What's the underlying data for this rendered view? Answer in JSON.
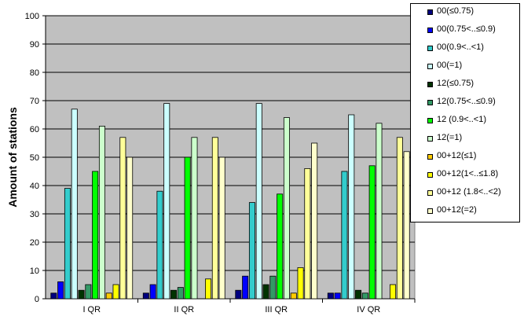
{
  "chart_data": {
    "type": "bar",
    "title": "",
    "xlabel": "",
    "ylabel": "Amount of stations",
    "ylim": [
      0,
      100
    ],
    "yticks": [
      "0",
      "10",
      "20",
      "30",
      "40",
      "50",
      "60",
      "70",
      "80",
      "90",
      "100"
    ],
    "categories": [
      "I QR",
      "II QR",
      "III QR",
      "IV QR"
    ],
    "grid": true,
    "legend_position": "right",
    "plot_background": "#c0c0c0",
    "series": [
      {
        "name": "00(≤0.75)",
        "color": "#000080",
        "values": [
          2,
          2,
          3,
          2
        ]
      },
      {
        "name": "00(0.75<..≤0.9)",
        "color": "#0000ff",
        "values": [
          6,
          5,
          8,
          2
        ]
      },
      {
        "name": "00(0.9<..<1)",
        "color": "#33cccc",
        "values": [
          39,
          38,
          34,
          45
        ]
      },
      {
        "name": "00(=1)",
        "color": "#ccffff",
        "values": [
          67,
          69,
          69,
          65
        ]
      },
      {
        "name": "12(≤0.75)",
        "color": "#003300",
        "values": [
          3,
          3,
          5,
          3
        ]
      },
      {
        "name": "12(0.75<..≤0.9)",
        "color": "#339966",
        "values": [
          5,
          4,
          8,
          2
        ]
      },
      {
        "name": "12 (0.9<..<1)",
        "color": "#00ff00",
        "values": [
          45,
          50,
          37,
          47
        ]
      },
      {
        "name": "12(=1)",
        "color": "#ccffcc",
        "values": [
          61,
          57,
          64,
          62
        ]
      },
      {
        "name": "00+12(≤1)",
        "color": "#ffcc00",
        "values": [
          2,
          0,
          2,
          0
        ]
      },
      {
        "name": "00+12(1<..≤1.8)",
        "color": "#ffff00",
        "values": [
          5,
          7,
          11,
          5
        ]
      },
      {
        "name": "00+12 (1.8<..<2)",
        "color": "#ffff99",
        "values": [
          57,
          57,
          46,
          57
        ]
      },
      {
        "name": "00+12(=2)",
        "color": "#ffffcc",
        "values": [
          50,
          50,
          55,
          52
        ]
      }
    ]
  }
}
